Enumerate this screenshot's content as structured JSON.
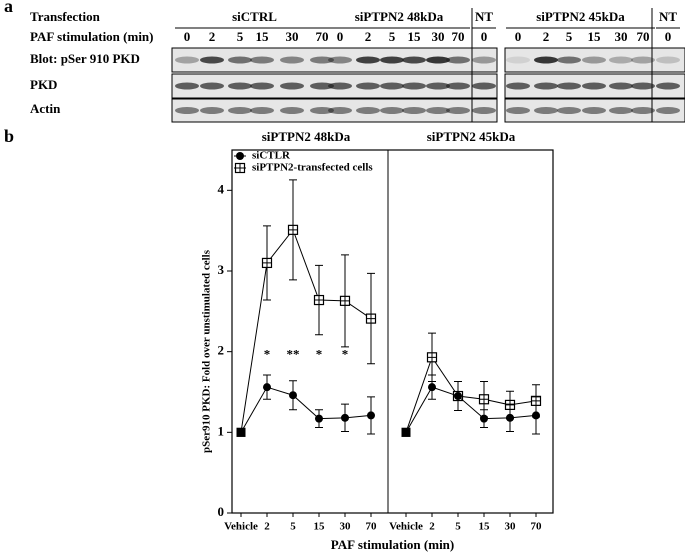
{
  "panel_a": {
    "label": "a",
    "row_labels": [
      "Transfection",
      "PAF stimulation (min)",
      "Blot: pSer 910 PKD",
      "PKD",
      "Actin"
    ],
    "groups": [
      {
        "name": "siCTRL",
        "lanes": [
          "0",
          "2",
          "5",
          "15",
          "30",
          "70"
        ]
      },
      {
        "name": "siPTPN2 48kDa",
        "lanes": [
          "0",
          "2",
          "5",
          "15",
          "30",
          "70"
        ]
      },
      {
        "name": "NT",
        "lanes": [
          "0"
        ]
      },
      {
        "name": "siPTPN2 45kDa",
        "lanes": [
          "0",
          "2",
          "5",
          "15",
          "30",
          "70"
        ]
      },
      {
        "name": "NT",
        "lanes": [
          "0"
        ]
      }
    ]
  },
  "panel_label": "b",
  "chart_data": [
    {
      "type": "line",
      "title": "siPTPN2 48kDa",
      "ylabel": "pSer910 PKD: Fold over unstimulated cells",
      "xlabel": "PAF stimulation (min)",
      "categories": [
        "Vehicle",
        "2",
        "5",
        "15",
        "30",
        "70"
      ],
      "ylim": [
        0,
        4.5
      ],
      "yticks": [
        0,
        1,
        2,
        3,
        4
      ],
      "legend": "upper left",
      "vehicle_marker": "filled-square",
      "series": [
        {
          "name": "siCTLR",
          "color": "#000000",
          "marker": "circle",
          "values": [
            1,
            1.56,
            1.46,
            1.17,
            1.18,
            1.21
          ],
          "errors": [
            0,
            0.15,
            0.18,
            0.11,
            0.17,
            0.23
          ]
        },
        {
          "name": "siPTPN2-transfected cells",
          "color": "#000000",
          "marker": "square-open",
          "values": [
            1,
            3.1,
            3.51,
            2.64,
            2.63,
            2.41
          ],
          "errors": [
            0,
            0.46,
            0.62,
            0.43,
            0.57,
            0.56
          ]
        }
      ],
      "annotations": [
        {
          "text": "*",
          "x": "2",
          "y": 1.95
        },
        {
          "text": "**",
          "x": "5",
          "y": 1.95
        },
        {
          "text": "*",
          "x": "15",
          "y": 1.95
        },
        {
          "text": "*",
          "x": "30",
          "y": 1.95
        }
      ]
    },
    {
      "type": "line",
      "title": "siPTPN2 45kDa",
      "categories": [
        "Vehicle",
        "2",
        "5",
        "15",
        "30",
        "70"
      ],
      "ylim": [
        0,
        4.5
      ],
      "vehicle_marker": "filled-square",
      "series": [
        {
          "color": "#000000",
          "marker": "circle",
          "values": [
            1,
            1.56,
            1.45,
            1.17,
            1.18,
            1.21
          ],
          "errors": [
            0,
            0.15,
            0.18,
            0.11,
            0.17,
            0.23
          ]
        },
        {
          "color": "#000000",
          "marker": "square-open",
          "values": [
            1,
            1.93,
            1.45,
            1.41,
            1.34,
            1.39
          ],
          "errors": [
            0,
            0.3,
            0.18,
            0.22,
            0.17,
            0.2
          ]
        }
      ]
    }
  ]
}
